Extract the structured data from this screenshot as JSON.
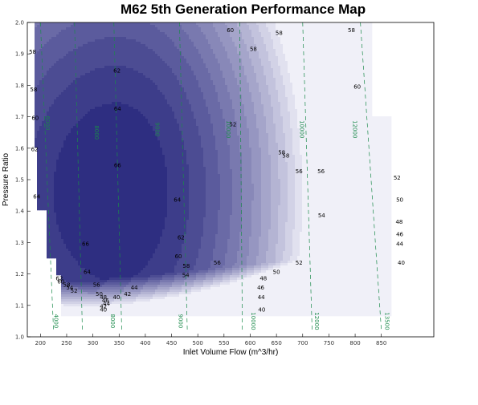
{
  "chart_data": {
    "type": "contour",
    "title": "M62 5th Generation Performance Map",
    "xlabel": "Inlet Volume Flow (m^3/hr)",
    "ylabel": "Pressure Ratio",
    "xlim": [
      175,
      950
    ],
    "ylim": [
      1.0,
      2.0
    ],
    "x_ticks": [
      200,
      250,
      300,
      350,
      400,
      450,
      500,
      550,
      600,
      650,
      700,
      750,
      800,
      850
    ],
    "x_tick_labels": [
      "200",
      "250",
      "300",
      "350",
      "400",
      "450",
      "500",
      "550",
      "600",
      "650",
      "700",
      "750",
      "800",
      "850"
    ],
    "y_ticks": [
      1.0,
      1.1,
      1.2,
      1.3,
      1.4,
      1.5,
      1.6,
      1.7,
      1.8,
      1.9,
      2.0
    ],
    "y_tick_labels": [
      "1.0",
      "1.1",
      "1.2",
      "1.3",
      "1.4",
      "1.5",
      "1.6",
      "1.7",
      "1.8",
      "1.9",
      "2.0"
    ],
    "efficiency_levels": [
      40,
      42,
      44,
      46,
      48,
      50,
      52,
      54,
      56,
      58,
      60,
      62,
      64,
      66
    ],
    "efficiency_labels": [
      {
        "text": "58",
        "x": 185,
        "y": 1.9
      },
      {
        "text": "58",
        "x": 187,
        "y": 1.78
      },
      {
        "text": "60",
        "x": 190,
        "y": 1.69
      },
      {
        "text": "62",
        "x": 189,
        "y": 1.59
      },
      {
        "text": "64",
        "x": 193,
        "y": 1.44
      },
      {
        "text": "66",
        "x": 286,
        "y": 1.29
      },
      {
        "text": "64",
        "x": 289,
        "y": 1.2
      },
      {
        "text": "62",
        "x": 236,
        "y": 1.18
      },
      {
        "text": "60",
        "x": 239,
        "y": 1.17
      },
      {
        "text": "58",
        "x": 250,
        "y": 1.16
      },
      {
        "text": "56",
        "x": 307,
        "y": 1.16
      },
      {
        "text": "54",
        "x": 256,
        "y": 1.15
      },
      {
        "text": "52",
        "x": 264,
        "y": 1.14
      },
      {
        "text": "50",
        "x": 312,
        "y": 1.13
      },
      {
        "text": "48",
        "x": 320,
        "y": 1.12
      },
      {
        "text": "46",
        "x": 324,
        "y": 1.11
      },
      {
        "text": "44",
        "x": 326,
        "y": 1.1
      },
      {
        "text": "42",
        "x": 320,
        "y": 1.09
      },
      {
        "text": "40",
        "x": 320,
        "y": 1.08
      },
      {
        "text": "40",
        "x": 345,
        "y": 1.12
      },
      {
        "text": "42",
        "x": 366,
        "y": 1.13
      },
      {
        "text": "44",
        "x": 379,
        "y": 1.15
      },
      {
        "text": "62",
        "x": 346,
        "y": 1.84
      },
      {
        "text": "64",
        "x": 347,
        "y": 1.72
      },
      {
        "text": "66",
        "x": 347,
        "y": 1.54
      },
      {
        "text": "64",
        "x": 461,
        "y": 1.43
      },
      {
        "text": "62",
        "x": 468,
        "y": 1.31
      },
      {
        "text": "60",
        "x": 463,
        "y": 1.25
      },
      {
        "text": "58",
        "x": 478,
        "y": 1.22
      },
      {
        "text": "56",
        "x": 537,
        "y": 1.23
      },
      {
        "text": "54",
        "x": 477,
        "y": 1.19
      },
      {
        "text": "52",
        "x": 567,
        "y": 1.67
      },
      {
        "text": "60",
        "x": 562,
        "y": 1.97
      },
      {
        "text": "58",
        "x": 655,
        "y": 1.96
      },
      {
        "text": "58",
        "x": 606,
        "y": 1.91
      },
      {
        "text": "58",
        "x": 668,
        "y": 1.57
      },
      {
        "text": "56",
        "x": 693,
        "y": 1.52
      },
      {
        "text": "54",
        "x": 736,
        "y": 1.38
      },
      {
        "text": "52",
        "x": 693,
        "y": 1.23
      },
      {
        "text": "50",
        "x": 650,
        "y": 1.2
      },
      {
        "text": "48",
        "x": 625,
        "y": 1.18
      },
      {
        "text": "46",
        "x": 620,
        "y": 1.15
      },
      {
        "text": "44",
        "x": 621,
        "y": 1.12
      },
      {
        "text": "40",
        "x": 622,
        "y": 1.08
      },
      {
        "text": "58",
        "x": 660,
        "y": 1.58
      },
      {
        "text": "56",
        "x": 735,
        "y": 1.52
      },
      {
        "text": "52",
        "x": 880,
        "y": 1.5
      },
      {
        "text": "50",
        "x": 885,
        "y": 1.43
      },
      {
        "text": "48",
        "x": 884,
        "y": 1.36
      },
      {
        "text": "46",
        "x": 885,
        "y": 1.32
      },
      {
        "text": "44",
        "x": 885,
        "y": 1.29
      },
      {
        "text": "40",
        "x": 888,
        "y": 1.23
      },
      {
        "text": "60",
        "x": 804,
        "y": 1.79
      },
      {
        "text": "58",
        "x": 793,
        "y": 1.97
      }
    ],
    "speed_lines": [
      {
        "label": "4000",
        "x_top": 200,
        "x_bottom": 225
      },
      {
        "label": "6000",
        "x_top": 265,
        "x_bottom": 280
      },
      {
        "label": "8000",
        "x_top": 340,
        "x_bottom": 355
      },
      {
        "label": "9000",
        "x_top": 465,
        "x_bottom": 480
      },
      {
        "label": "10000",
        "x_top": 580,
        "x_bottom": 585
      },
      {
        "label": "12000",
        "x_top": 700,
        "x_bottom": 718
      },
      {
        "label": "13500",
        "x_top": 810,
        "x_bottom": 850
      }
    ],
    "speed_label_positions": [
      {
        "text": "4000",
        "x": 226,
        "y": 1.05
      },
      {
        "text": "8000",
        "x": 334,
        "y": 1.05
      },
      {
        "text": "9000",
        "x": 464,
        "y": 1.05
      },
      {
        "text": "10000",
        "x": 602,
        "y": 1.05
      },
      {
        "text": "12000",
        "x": 723,
        "y": 1.05
      },
      {
        "text": "13500",
        "x": 857,
        "y": 1.05
      },
      {
        "text": "6000",
        "x": 210,
        "y": 1.68
      },
      {
        "text": "8000",
        "x": 304,
        "y": 1.65
      },
      {
        "text": "9000",
        "x": 419,
        "y": 1.66
      },
      {
        "text": "10000",
        "x": 555,
        "y": 1.66
      },
      {
        "text": "10000",
        "x": 695,
        "y": 1.66
      },
      {
        "text": "12000",
        "x": 796,
        "y": 1.66
      }
    ],
    "colors": {
      "darkest": "#1f1f78",
      "lightest": "#f0f0f8",
      "speed_line": "#1a8a4a",
      "contour_line": "#e8e8f8"
    },
    "grid": false
  }
}
